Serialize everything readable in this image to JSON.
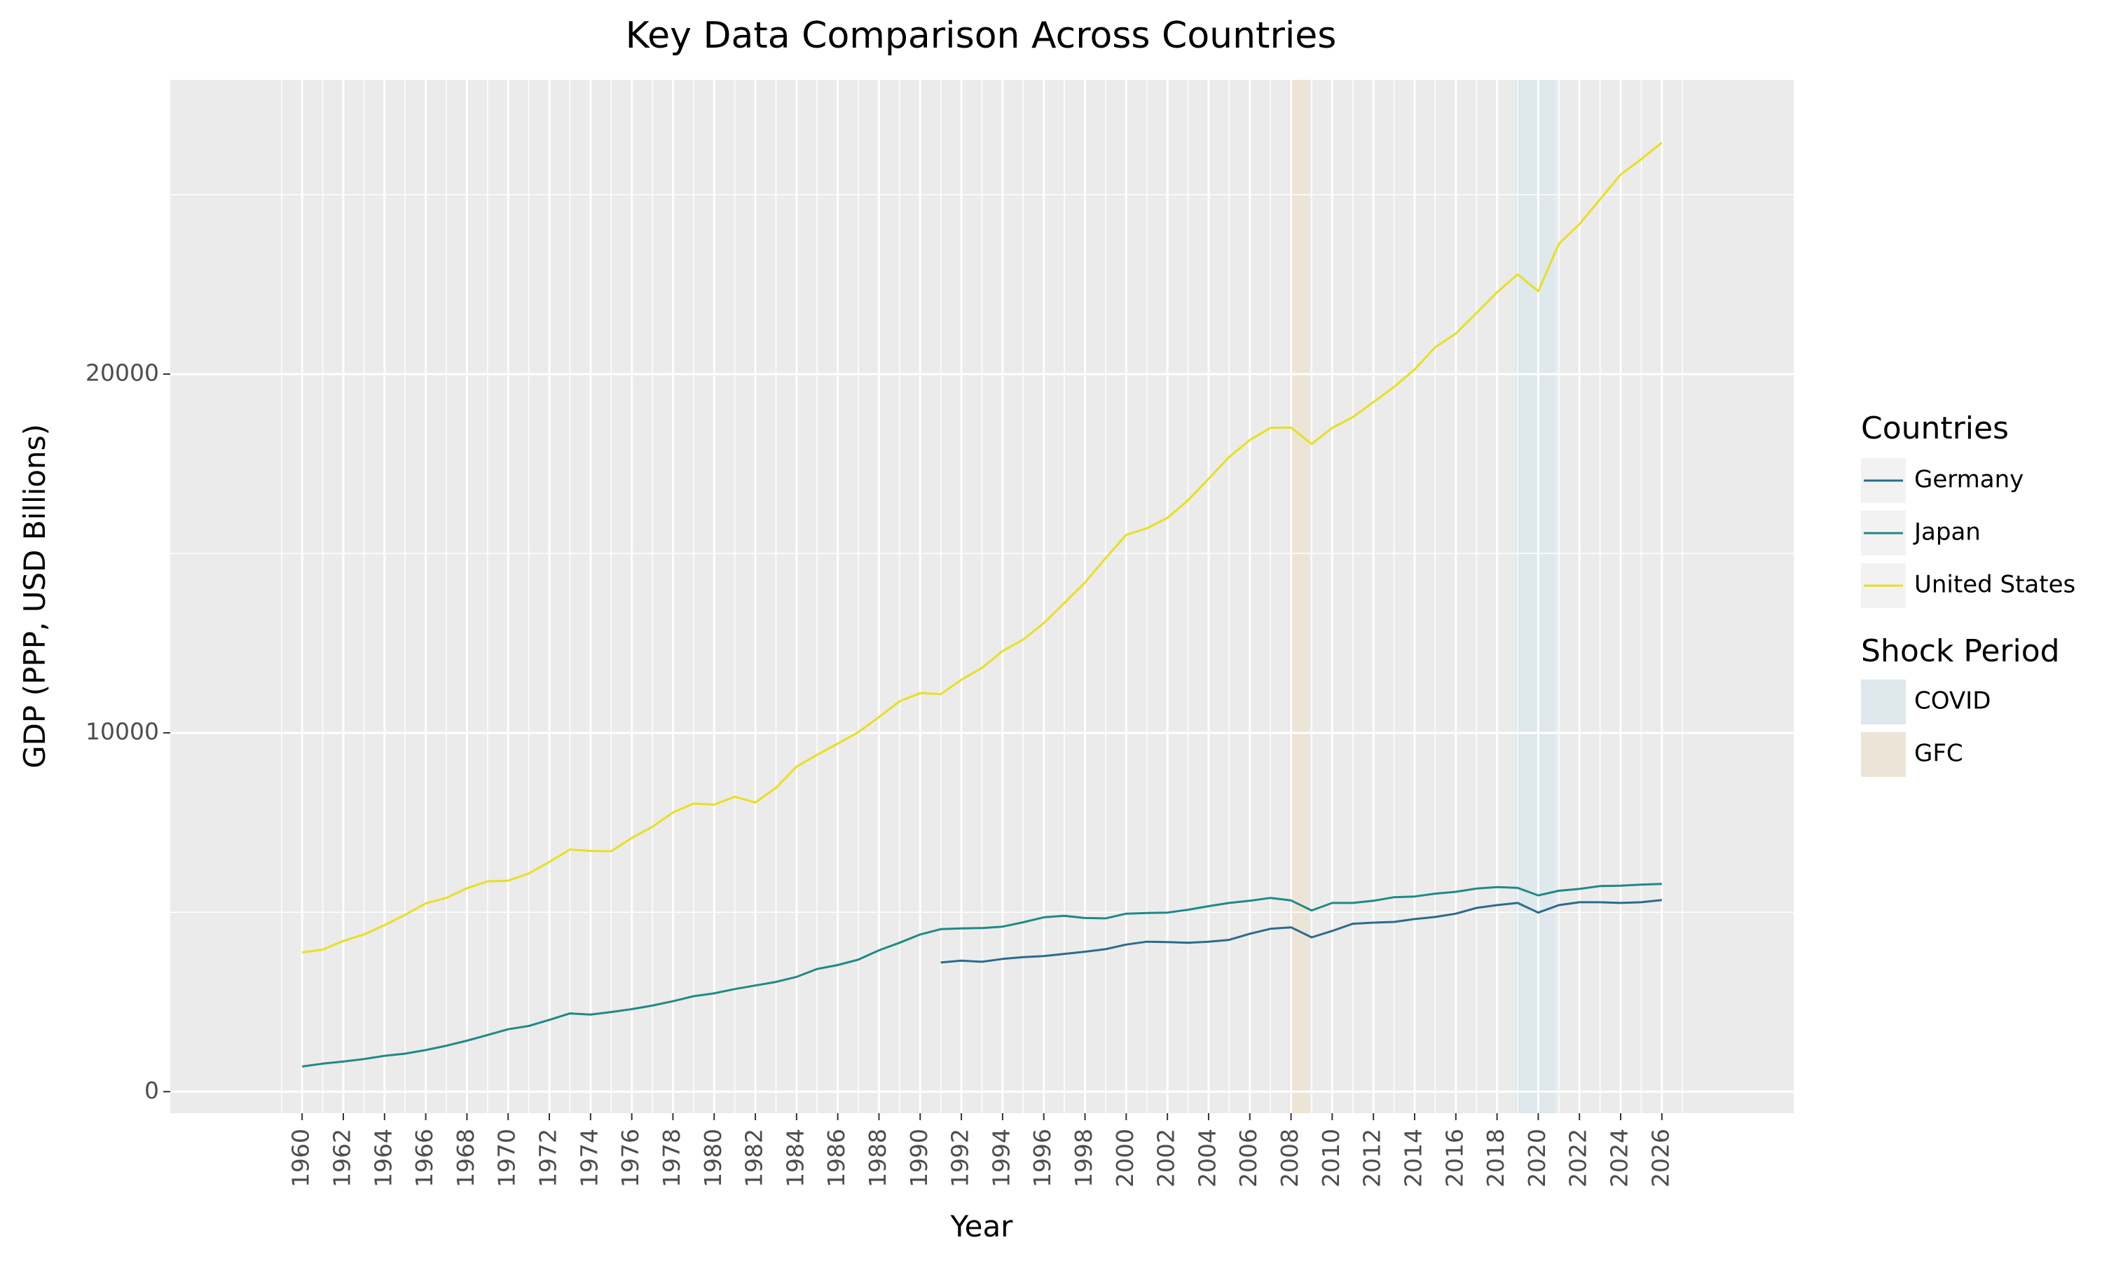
{
  "chart_data": {
    "type": "line",
    "title": "Key Data Comparison Across Countries",
    "xlabel": "Year",
    "ylabel": "GDP (PPP, USD Billions)",
    "xlim": [
      1953.6,
      2032.4
    ],
    "ylim": [
      -600,
      28200
    ],
    "x_ticks": [
      1960,
      1962,
      1964,
      1966,
      1968,
      1970,
      1972,
      1974,
      1976,
      1978,
      1980,
      1982,
      1984,
      1986,
      1988,
      1990,
      1992,
      1994,
      1996,
      1998,
      2000,
      2002,
      2004,
      2006,
      2008,
      2010,
      2012,
      2014,
      2016,
      2018,
      2020,
      2022,
      2024,
      2026
    ],
    "y_ticks": [
      0,
      10000,
      20000
    ],
    "grid": true,
    "legend": {
      "placement": "right",
      "countries_title": "Countries",
      "shock_title": "Shock Period"
    },
    "x": [
      1960,
      1961,
      1962,
      1963,
      1964,
      1965,
      1966,
      1967,
      1968,
      1969,
      1970,
      1971,
      1972,
      1973,
      1974,
      1975,
      1976,
      1977,
      1978,
      1979,
      1980,
      1981,
      1982,
      1983,
      1984,
      1985,
      1986,
      1987,
      1988,
      1989,
      1990,
      1991,
      1992,
      1993,
      1994,
      1995,
      1996,
      1997,
      1998,
      1999,
      2000,
      2001,
      2002,
      2003,
      2004,
      2005,
      2006,
      2007,
      2008,
      2009,
      2010,
      2011,
      2012,
      2013,
      2014,
      2015,
      2016,
      2017,
      2018,
      2019,
      2020,
      2021,
      2022,
      2023,
      2024,
      2025,
      2026
    ],
    "series": [
      {
        "name": "Germany",
        "color": "#2c6b8d",
        "values": [
          null,
          null,
          null,
          null,
          null,
          null,
          null,
          null,
          null,
          null,
          null,
          null,
          null,
          null,
          null,
          null,
          null,
          null,
          null,
          null,
          null,
          null,
          null,
          null,
          null,
          null,
          null,
          null,
          null,
          null,
          null,
          3600,
          3650,
          3620,
          3700,
          3750,
          3780,
          3840,
          3900,
          3970,
          4100,
          4180,
          4170,
          4150,
          4180,
          4230,
          4400,
          4540,
          4580,
          4300,
          4480,
          4680,
          4710,
          4730,
          4810,
          4870,
          4960,
          5120,
          5200,
          5260,
          4990,
          5200,
          5280,
          5280,
          5260,
          5280,
          5340
        ]
      },
      {
        "name": "Japan",
        "color": "#1e8a87",
        "values": [
          700,
          780,
          840,
          910,
          1000,
          1060,
          1160,
          1280,
          1420,
          1580,
          1740,
          1830,
          2000,
          2180,
          2150,
          2220,
          2300,
          2400,
          2520,
          2660,
          2740,
          2860,
          2960,
          3060,
          3200,
          3420,
          3530,
          3680,
          3940,
          4150,
          4380,
          4530,
          4550,
          4560,
          4600,
          4720,
          4860,
          4900,
          4840,
          4830,
          4960,
          4980,
          4990,
          5070,
          5170,
          5260,
          5320,
          5400,
          5330,
          5050,
          5260,
          5260,
          5320,
          5420,
          5440,
          5520,
          5570,
          5660,
          5700,
          5680,
          5470,
          5600,
          5650,
          5730,
          5740,
          5770,
          5790
        ]
      },
      {
        "name": "United States",
        "color": "#e8e020",
        "values": [
          3880,
          3960,
          4200,
          4380,
          4640,
          4930,
          5250,
          5400,
          5670,
          5860,
          5880,
          6080,
          6400,
          6750,
          6710,
          6700,
          7070,
          7380,
          7780,
          8030,
          8000,
          8220,
          8060,
          8470,
          9060,
          9390,
          9700,
          10020,
          10440,
          10880,
          11110,
          11080,
          11480,
          11810,
          12280,
          12600,
          13060,
          13620,
          14190,
          14870,
          15520,
          15700,
          15990,
          16480,
          17080,
          17690,
          18160,
          18500,
          18510,
          18050,
          18500,
          18800,
          19220,
          19640,
          20130,
          20750,
          21130,
          21700,
          22280,
          22780,
          22310,
          23630,
          24180,
          24870,
          25560,
          25990,
          26450
        ]
      }
    ],
    "shock_periods": [
      {
        "name": "COVID",
        "x_start": 2018.9,
        "x_end": 2020.8,
        "color": "#dfe8ec"
      },
      {
        "name": "GFC",
        "x_start": 2007.9,
        "x_end": 2008.9,
        "color": "#ede4d8"
      }
    ]
  }
}
